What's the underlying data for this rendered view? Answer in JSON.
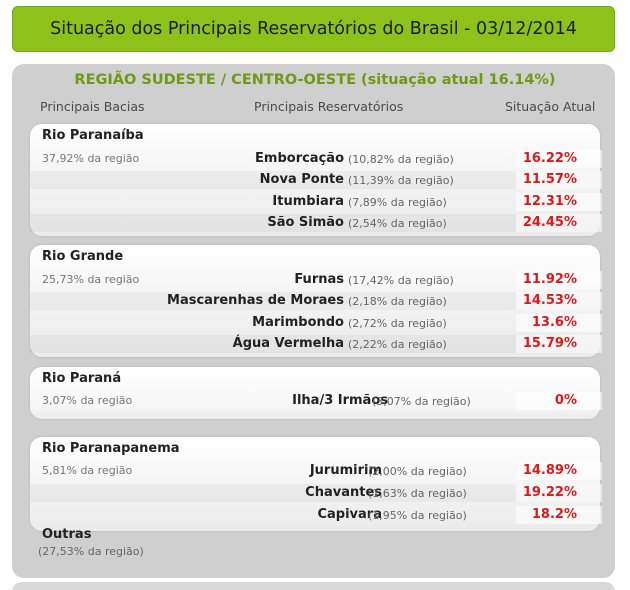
{
  "header": {
    "title": "Situação dos Principais Reservatórios do Brasil - 03/12/2014"
  },
  "region": {
    "title": "REGIÃO SUDESTE / CENTRO-OESTE (situação atual 16.14%)",
    "col_basins": "Principais Bacias",
    "col_reservoirs": "Principais Reservatórios",
    "col_status": "Situação Atual"
  },
  "basins": [
    {
      "name": "Rio Paranaíba",
      "share": "37,92% da região",
      "reservoirs": [
        {
          "name": "Emborcação",
          "share": "(10,82% da região)",
          "value": "16.22%"
        },
        {
          "name": "Nova Ponte",
          "share": "(11,39% da região)",
          "value": "11.57%"
        },
        {
          "name": "Itumbiara",
          "share": "(7,89% da região)",
          "value": "12.31%"
        },
        {
          "name": "São Simão",
          "share": "(2,54% da região)",
          "value": "24.45%"
        }
      ]
    },
    {
      "name": "Rio Grande",
      "share": "25,73% da região",
      "reservoirs": [
        {
          "name": "Furnas",
          "share": "(17,42% da região)",
          "value": "11.92%"
        },
        {
          "name": "Mascarenhas de Moraes",
          "share": "(2,18% da região)",
          "value": "14.53%"
        },
        {
          "name": "Marimbondo",
          "share": "(2,72% da região)",
          "value": "13.6%"
        },
        {
          "name": "Água Vermelha",
          "share": "(2,22% da região)",
          "value": "15.79%"
        }
      ]
    },
    {
      "name": "Rio Paraná",
      "share": "3,07% da região",
      "reservoirs": [
        {
          "name": "Ilha/3 Irmãos",
          "share": "(3,07% da região)",
          "value": "0%"
        }
      ]
    },
    {
      "name": "Rio Paranapanema",
      "share": "5,81% da região",
      "reservoirs": [
        {
          "name": "Jurumirim",
          "share": "(2,00% da região)",
          "value": "14.89%"
        },
        {
          "name": "Chavantes",
          "share": "(1,63% da região)",
          "value": "19.22%"
        },
        {
          "name": "Capivara",
          "share": "(1,95% da região)",
          "value": "18.2%"
        }
      ]
    }
  ],
  "others": {
    "name": "Outras",
    "share": "(27,53% da região)"
  }
}
